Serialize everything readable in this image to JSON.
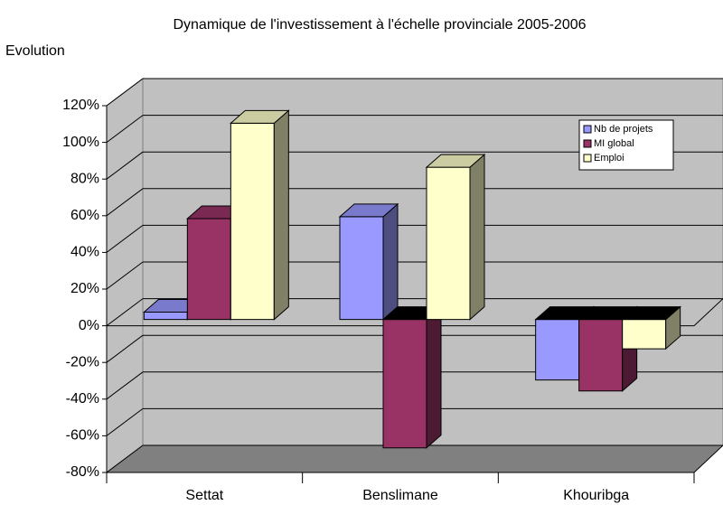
{
  "chart_data": {
    "type": "bar3d",
    "title": "Dynamique de l'investissement à l'échelle provinciale 2005-2006",
    "y_label": "Evolution",
    "categories": [
      "Settat",
      "Benslimane",
      "Khouribga"
    ],
    "series": [
      {
        "name": "Nb de projets",
        "color": "#9999ff",
        "values": [
          4,
          56,
          -33
        ]
      },
      {
        "name": "MI global",
        "color": "#993366",
        "values": [
          55,
          -70,
          -39
        ]
      },
      {
        "name": "Emploi",
        "color": "#ffffcc",
        "values": [
          107,
          83,
          -16
        ]
      }
    ],
    "ylim": [
      -80,
      120
    ],
    "yticks": [
      {
        "value": -80,
        "label": "-80%"
      },
      {
        "value": -60,
        "label": "-60%"
      },
      {
        "value": -40,
        "label": "-40%"
      },
      {
        "value": -20,
        "label": "-20%"
      },
      {
        "value": 0,
        "label": "0%"
      },
      {
        "value": 20,
        "label": "20%"
      },
      {
        "value": 40,
        "label": "40%"
      },
      {
        "value": 60,
        "label": "60%"
      },
      {
        "value": 80,
        "label": "80%"
      },
      {
        "value": 100,
        "label": "100%"
      },
      {
        "value": 120,
        "label": "120%"
      }
    ],
    "grid": true,
    "legend": "upper right"
  }
}
